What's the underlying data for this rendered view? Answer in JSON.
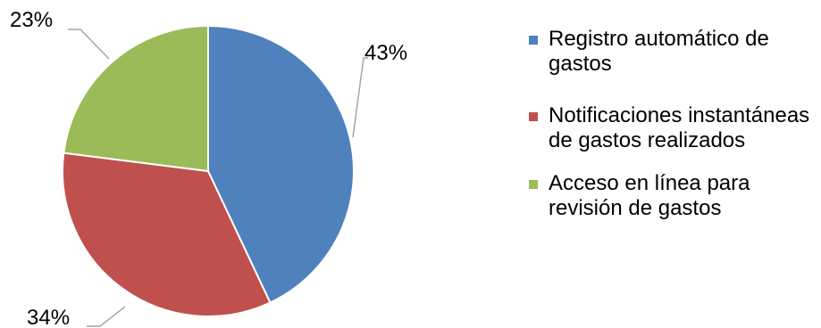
{
  "chart_data": {
    "type": "pie",
    "slices": [
      {
        "label": "Registro automático de gastos",
        "value": 43,
        "value_label": "43%",
        "color": "#4f81bd"
      },
      {
        "label": "Notificaciones instantáneas de gastos realizados",
        "value": 34,
        "value_label": "34%",
        "color": "#c0504d"
      },
      {
        "label": "Acceso en línea para revisión de gastos",
        "value": 23,
        "value_label": "23%",
        "color": "#9bbb59"
      }
    ],
    "legend_position": "right",
    "start_angle": "top",
    "direction": "clockwise"
  }
}
